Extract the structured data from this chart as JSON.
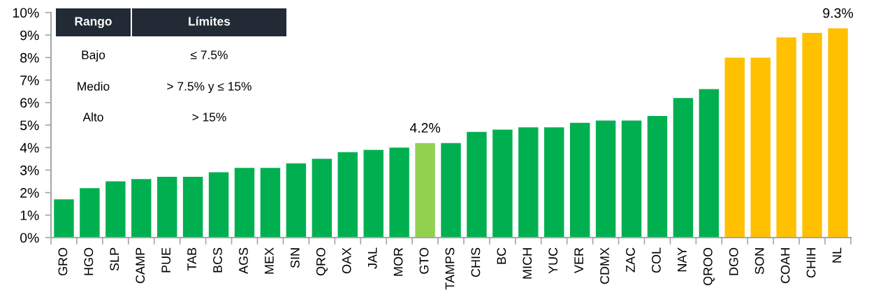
{
  "chart_data": {
    "type": "bar",
    "categories": [
      "GRO",
      "HGO",
      "SLP",
      "CAMP",
      "PUE",
      "TAB",
      "BCS",
      "AGS",
      "MEX",
      "SIN",
      "QRO",
      "OAX",
      "JAL",
      "MOR",
      "GTO",
      "TAMPS",
      "CHIS",
      "BC",
      "MICH",
      "YUC",
      "VER",
      "CDMX",
      "ZAC",
      "COL",
      "NAY",
      "QROO",
      "DGO",
      "SON",
      "COAH",
      "CHIH",
      "NL"
    ],
    "values": [
      1.7,
      2.2,
      2.5,
      2.6,
      2.7,
      2.7,
      2.9,
      3.1,
      3.1,
      3.3,
      3.5,
      3.8,
      3.9,
      4.0,
      4.2,
      4.2,
      4.7,
      4.8,
      4.9,
      4.9,
      5.1,
      5.2,
      5.2,
      5.4,
      6.2,
      6.6,
      8.0,
      8.0,
      8.9,
      9.1,
      9.3
    ],
    "colors": [
      "#00b050",
      "#00b050",
      "#00b050",
      "#00b050",
      "#00b050",
      "#00b050",
      "#00b050",
      "#00b050",
      "#00b050",
      "#00b050",
      "#00b050",
      "#00b050",
      "#00b050",
      "#00b050",
      "#92d050",
      "#00b050",
      "#00b050",
      "#00b050",
      "#00b050",
      "#00b050",
      "#00b050",
      "#00b050",
      "#00b050",
      "#00b050",
      "#00b050",
      "#00b050",
      "#ffc000",
      "#ffc000",
      "#ffc000",
      "#ffc000",
      "#ffc000"
    ],
    "value_labels": [
      null,
      null,
      null,
      null,
      null,
      null,
      null,
      null,
      null,
      null,
      null,
      null,
      null,
      null,
      "4.2%",
      null,
      null,
      null,
      null,
      null,
      null,
      null,
      null,
      null,
      null,
      null,
      null,
      null,
      null,
      null,
      "9.3%"
    ],
    "ylim": [
      0,
      10
    ],
    "yticks": [
      {
        "value": 0,
        "label": "0%"
      },
      {
        "value": 1,
        "label": "1%"
      },
      {
        "value": 2,
        "label": "2%"
      },
      {
        "value": 3,
        "label": "3%"
      },
      {
        "value": 4,
        "label": "4%"
      },
      {
        "value": 5,
        "label": "5%"
      },
      {
        "value": 6,
        "label": "6%"
      },
      {
        "value": 7,
        "label": "7%"
      },
      {
        "value": 8,
        "label": "8%"
      },
      {
        "value": 9,
        "label": "9%"
      },
      {
        "value": 10,
        "label": "10%"
      }
    ],
    "annotations": [
      "Rango",
      "Límites",
      "Bajo",
      "≤ 7.5%",
      "Medio",
      "> 7.5% y ≤ 15%",
      "Alto",
      "> 15%"
    ],
    "grid": false,
    "legend": false
  }
}
